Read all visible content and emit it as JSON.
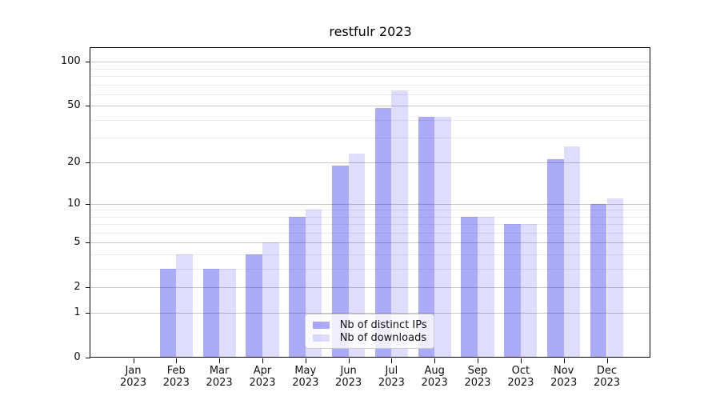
{
  "title": "restfulr 2023",
  "chart_data": {
    "type": "bar",
    "title": "restfulr 2023",
    "months": [
      "Jan",
      "Feb",
      "Mar",
      "Apr",
      "May",
      "Jun",
      "Jul",
      "Aug",
      "Sep",
      "Oct",
      "Nov",
      "Dec"
    ],
    "year": "2023",
    "categories": [
      "Jan 2023",
      "Feb 2023",
      "Mar 2023",
      "Apr 2023",
      "May 2023",
      "Jun 2023",
      "Jul 2023",
      "Aug 2023",
      "Sep 2023",
      "Oct 2023",
      "Nov 2023",
      "Dec 2023"
    ],
    "series": [
      {
        "name": "Nb of distinct IPs",
        "color": "rgba(10,10,235,0.34)",
        "values": [
          0,
          3,
          3,
          4,
          8,
          19,
          48,
          42,
          8,
          7,
          21,
          10
        ]
      },
      {
        "name": "Nb of downloads",
        "color": "rgba(10,10,235,0.135)",
        "values": [
          0,
          4,
          3,
          5,
          9,
          23,
          64,
          42,
          8,
          7,
          26,
          11
        ]
      }
    ],
    "y_axis": {
      "scale": "log1p",
      "major_ticks": [
        0,
        1,
        2,
        5,
        10,
        20,
        50,
        100
      ],
      "minor_gridlines": [
        3,
        4,
        6,
        7,
        8,
        9,
        30,
        40,
        60,
        70,
        80,
        90
      ],
      "max": 125
    },
    "legend": {
      "position": "lower center"
    },
    "grid": "horizontal",
    "xlabel": "",
    "ylabel": ""
  }
}
